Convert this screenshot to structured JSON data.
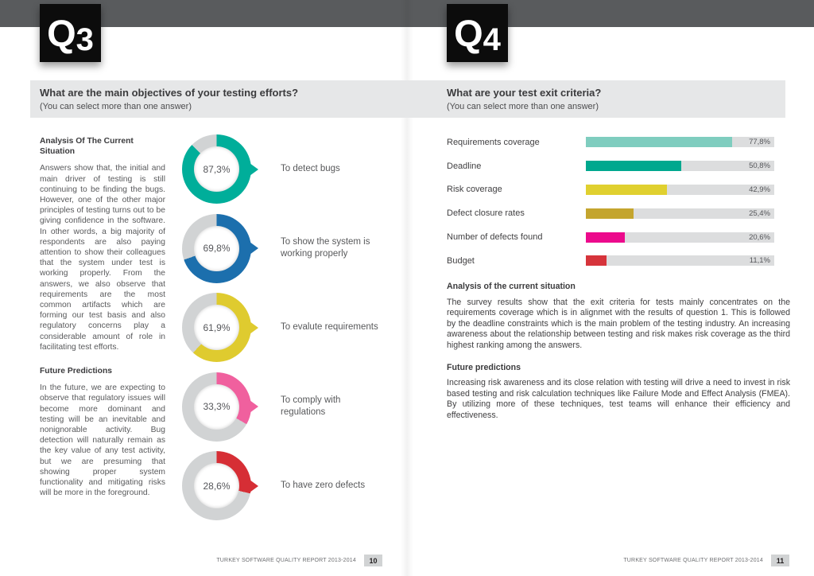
{
  "footer": {
    "report_title": "TURKEY SOFTWARE QUALITY REPORT 2013-2014",
    "left_page_number": "10",
    "right_page_number": "11"
  },
  "q3": {
    "tag_letter": "Q",
    "tag_number": "3",
    "question": "What are the main objectives of your testing efforts?",
    "instruction": "(You can select more than one answer)",
    "analysis_heading": "Analysis Of The Current Situation",
    "analysis_text": "Answers show that, the initial and main driver of testing is still continuing to be finding the bugs. However, one of the other major principles of testing turns out to be giving confidence in the software. In other words, a big majority of respondents are also paying attention to show their colleagues that the system under test is working properly. From the answers, we also observe that requirements are the most common artifacts which are forming our test basis and also regulatory concerns play a considerable amount of role in facilitating test efforts.",
    "future_heading": "Future Predictions",
    "future_text": "In the future, we are expecting to observe that regulatory issues will become more dominant and testing will be an inevitable and nonignorable activity. Bug detection will naturally remain as the key value of any test activity, but we are presuming that showing proper system functionality and mitigating risks will be more in the foreground."
  },
  "q4": {
    "tag_letter": "Q",
    "tag_number": "4",
    "question": "What are your test exit criteria?",
    "instruction": "(You can select more than one answer)",
    "analysis_heading": "Analysis of the current situation",
    "analysis_text": "The survey results show that the exit criteria for tests mainly concentrates on the requirements coverage which is in alignmet with the results of question 1. This is followed by the deadline constraints which is the main problem of the testing industry. An increasing awareness about the relationship between testing and risk makes risk coverage as the third highest ranking among the answers.",
    "future_heading": "Future predictions",
    "future_text": "Increasing risk awareness and its close relation with testing will drive a need to invest in risk based testing and risk calculation techniques like Failure Mode and Effect Analysis (FMEA). By utilizing more of these techniques, test teams will enhance their efficiency and effectiveness."
  },
  "chart_data": [
    {
      "type": "pie",
      "variant": "donut-list",
      "title": "What are the main objectives of your testing efforts?",
      "track_color": "#D1D3D4",
      "items": [
        {
          "label": "To detect bugs",
          "value": 87.3,
          "display": "87,3%",
          "color": "#00AE9A"
        },
        {
          "label": "To show the system is working properly",
          "value": 69.8,
          "display": "69,8%",
          "color": "#1C6FAD"
        },
        {
          "label": "To evalute requirements",
          "value": 61.9,
          "display": "61,9%",
          "color": "#DFCB2F"
        },
        {
          "label": "To comply with regulations",
          "value": 33.3,
          "display": "33,3%",
          "color": "#F0609E"
        },
        {
          "label": "To have zero defects",
          "value": 28.6,
          "display": "28,6%",
          "color": "#D62E35"
        }
      ]
    },
    {
      "type": "bar",
      "orientation": "horizontal",
      "title": "What are your test exit criteria?",
      "categories": [
        "Requirements coverage",
        "Deadline",
        "Risk coverage",
        "Defect closure rates",
        "Number of defects found",
        "Budget"
      ],
      "values": [
        77.8,
        50.8,
        42.9,
        25.4,
        20.6,
        11.1
      ],
      "display_values": [
        "77,8%",
        "50,8%",
        "42,9%",
        "25,4%",
        "20,6%",
        "11,1%"
      ],
      "colors": [
        "#7FCDBF",
        "#00A88E",
        "#E0D02F",
        "#C4A52E",
        "#EC0A8C",
        "#D6343B"
      ],
      "track_color": "#DCDDDE",
      "xlim": [
        0,
        100
      ],
      "grid": false,
      "legend": "none"
    }
  ]
}
